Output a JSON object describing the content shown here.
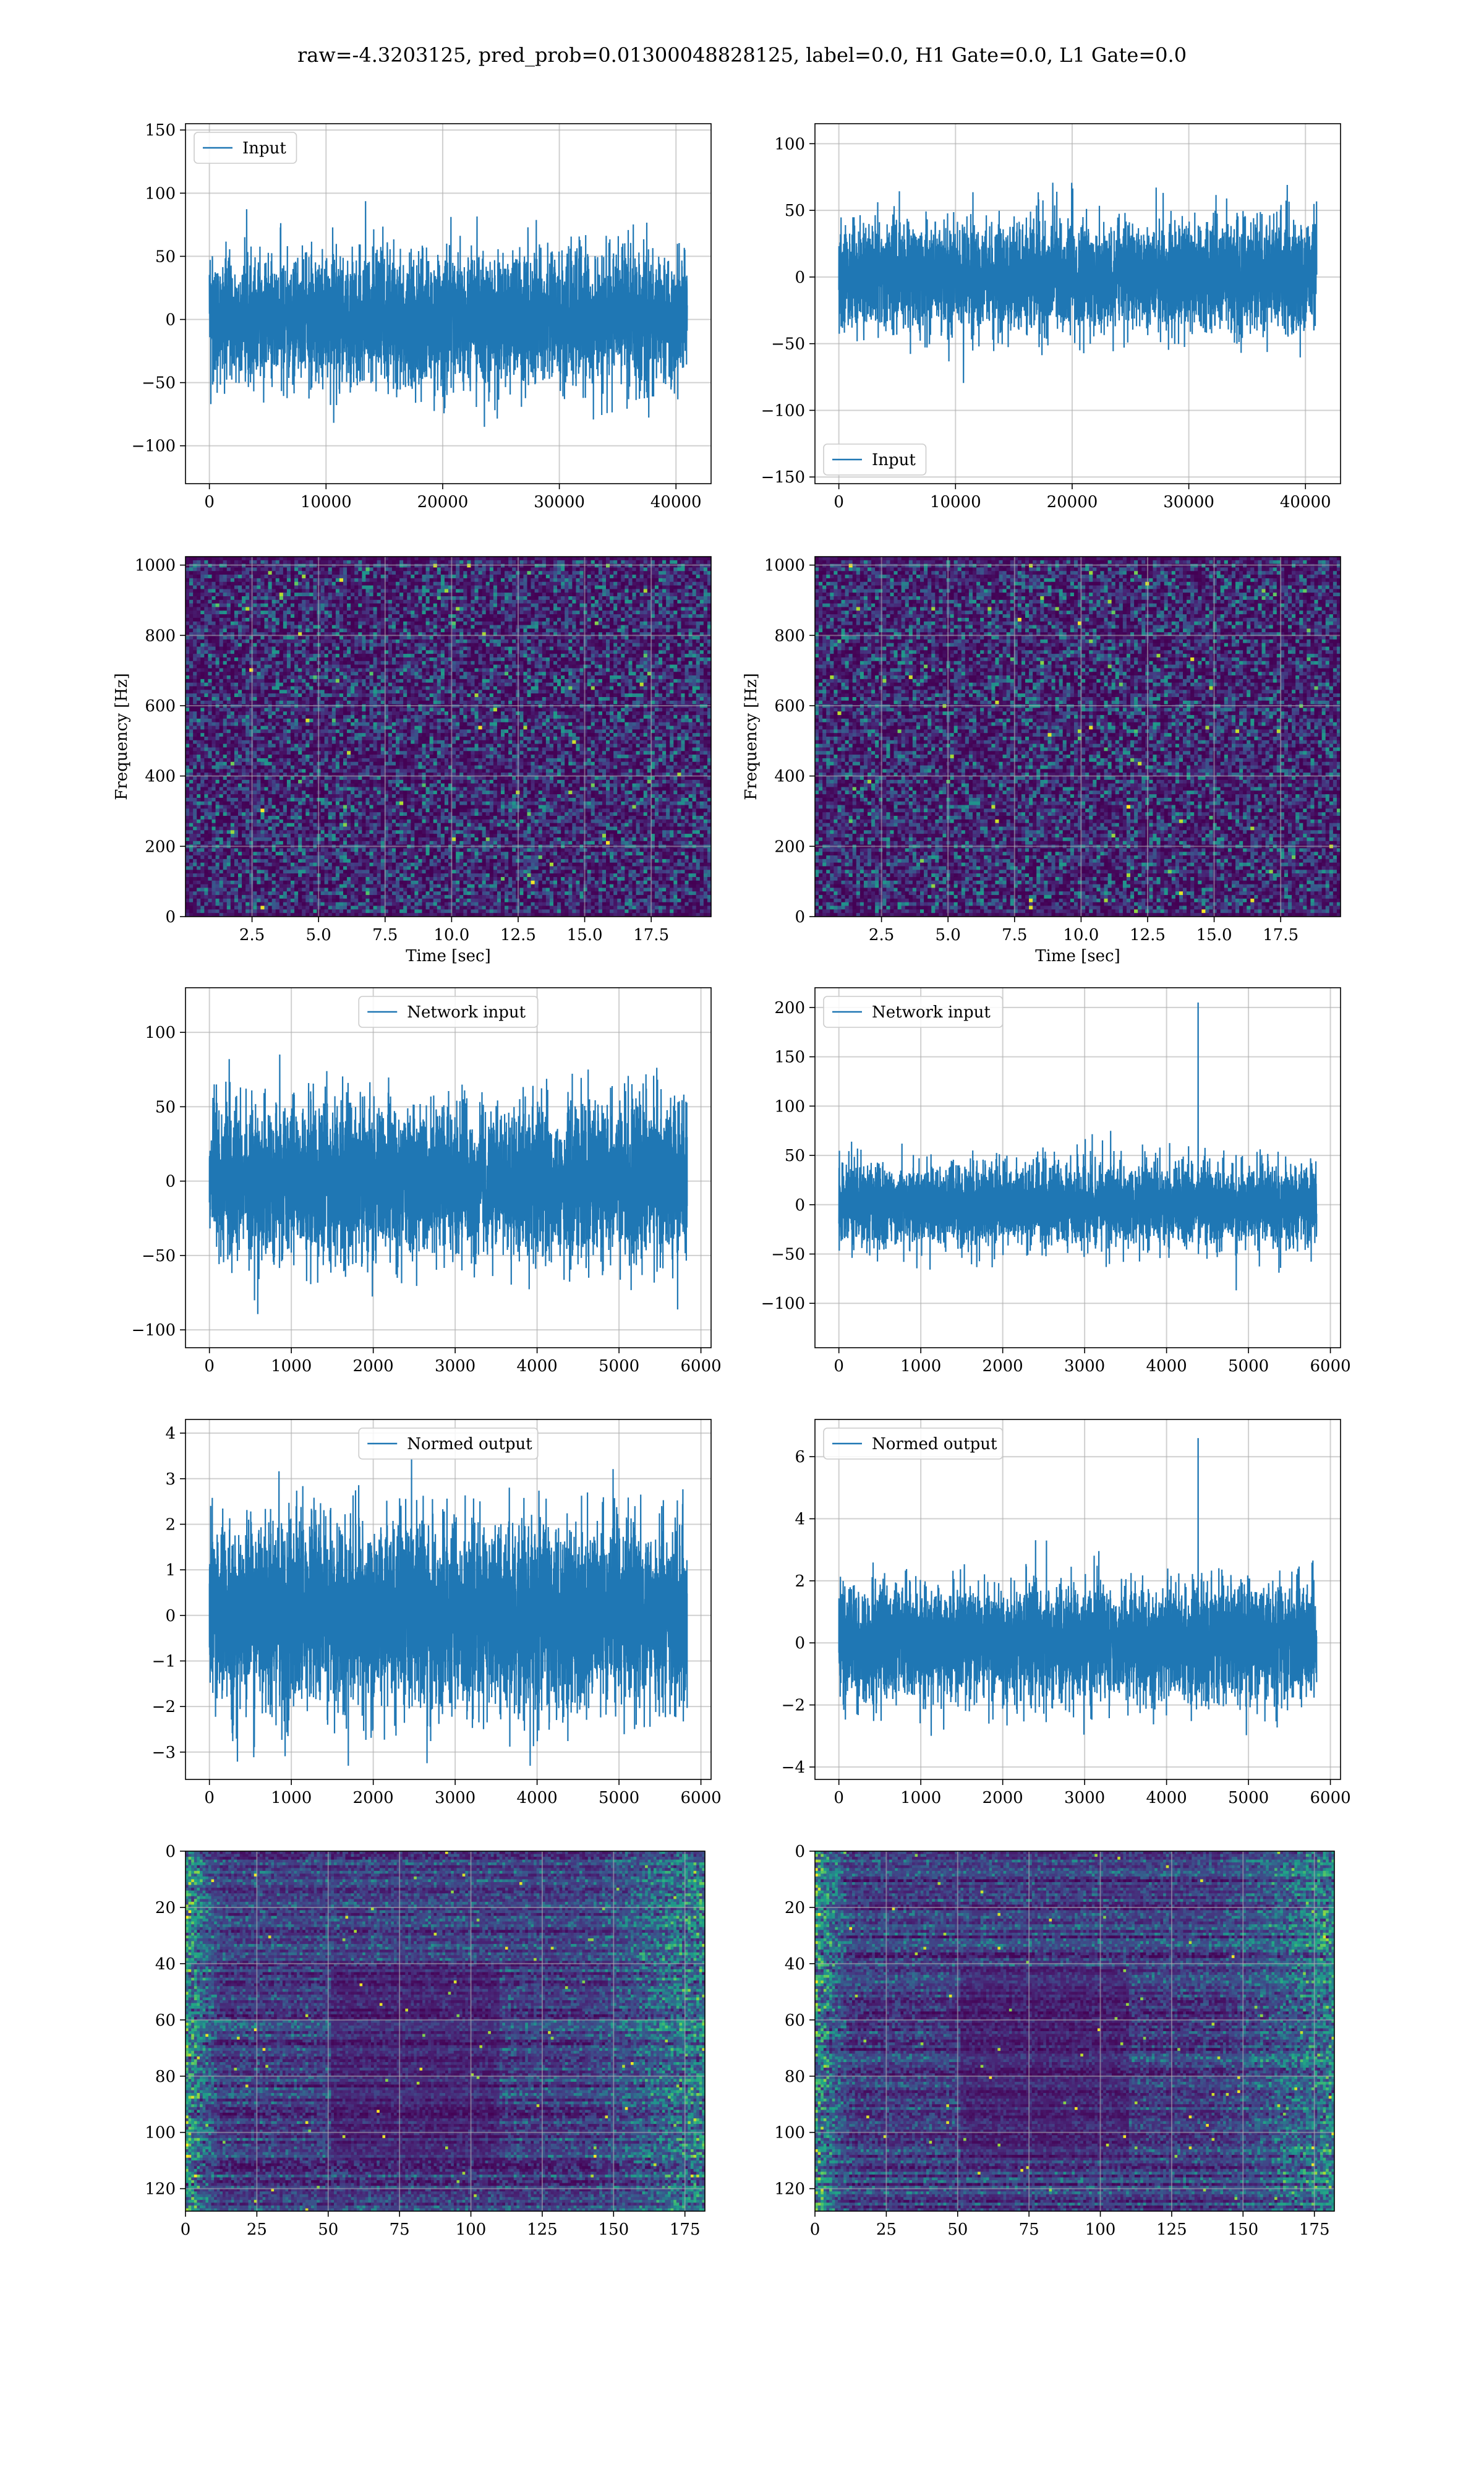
{
  "figure": {
    "suptitle": "raw=-4.3203125, pred_prob=0.01300048828125, label=0.0, H1 Gate=0.0, L1 Gate=0.0"
  },
  "colors": {
    "line": "#1f77b4",
    "grid": "#b0b0b0",
    "viridis_low": "#440154",
    "viridis_mid": "#21918c",
    "viridis_high": "#fde725"
  },
  "chart_data": [
    {
      "id": "input-h1",
      "type": "line",
      "title": "",
      "xlabel": "",
      "ylabel": "",
      "series": [
        {
          "name": "Input",
          "values": []
        }
      ],
      "n_samples": 40960,
      "noise_amplitude": 25,
      "clip": [
        -128,
        140
      ],
      "xlim": [
        -2048,
        43008
      ],
      "ylim": [
        -130,
        155
      ],
      "xticks": [
        0,
        10000,
        20000,
        30000,
        40000
      ],
      "yticks": [
        -100,
        -50,
        0,
        50,
        100,
        150
      ],
      "legend": "upper left",
      "grid": true
    },
    {
      "id": "input-l1",
      "type": "line",
      "title": "",
      "xlabel": "",
      "ylabel": "",
      "series": [
        {
          "name": "Input",
          "values": []
        }
      ],
      "n_samples": 40960,
      "noise_amplitude": 20,
      "clip": [
        -142,
        115
      ],
      "xlim": [
        -2048,
        43008
      ],
      "ylim": [
        -155,
        115
      ],
      "xticks": [
        0,
        10000,
        20000,
        30000,
        40000
      ],
      "yticks": [
        -150,
        -100,
        -50,
        0,
        50,
        100
      ],
      "legend": "lower left",
      "grid": true
    },
    {
      "id": "spectrogram-h1",
      "type": "heatmap",
      "title": "",
      "xlabel": "Time [sec]",
      "ylabel": "Frequency [Hz]",
      "xlim": [
        0,
        19.75
      ],
      "ylim": [
        0,
        1024
      ],
      "xticks": [
        2.5,
        5.0,
        7.5,
        10.0,
        12.5,
        15.0,
        17.5
      ],
      "yticks": [
        0,
        200,
        400,
        600,
        800,
        1000
      ],
      "colormap": "viridis",
      "grid": true
    },
    {
      "id": "spectrogram-l1",
      "type": "heatmap",
      "title": "",
      "xlabel": "Time [sec]",
      "ylabel": "Frequency [Hz]",
      "xlim": [
        0,
        19.75
      ],
      "ylim": [
        0,
        1024
      ],
      "xticks": [
        2.5,
        5.0,
        7.5,
        10.0,
        12.5,
        15.0,
        17.5
      ],
      "yticks": [
        0,
        200,
        400,
        600,
        800,
        1000
      ],
      "colormap": "viridis",
      "grid": true
    },
    {
      "id": "network-input-h1",
      "type": "line",
      "title": "",
      "xlabel": "",
      "ylabel": "",
      "series": [
        {
          "name": "Network input",
          "values": []
        }
      ],
      "n_samples": 5832,
      "noise_amplitude": 25,
      "clip": [
        -100,
        118
      ],
      "xlim": [
        -292,
        6124
      ],
      "ylim": [
        -112,
        130
      ],
      "xticks": [
        0,
        1000,
        2000,
        3000,
        4000,
        5000,
        6000
      ],
      "yticks": [
        -100,
        -50,
        0,
        50,
        100
      ],
      "legend": "upper center",
      "grid": true
    },
    {
      "id": "network-input-l1",
      "type": "line",
      "title": "",
      "xlabel": "",
      "ylabel": "",
      "series": [
        {
          "name": "Network input",
          "values": []
        }
      ],
      "n_samples": 5832,
      "noise_amplitude": 20,
      "clip": [
        -128,
        110
      ],
      "spike": {
        "x": 4385,
        "y": 205
      },
      "xlim": [
        -292,
        6124
      ],
      "ylim": [
        -145,
        220
      ],
      "xticks": [
        0,
        1000,
        2000,
        3000,
        4000,
        5000,
        6000
      ],
      "yticks": [
        -100,
        -50,
        0,
        50,
        100,
        150,
        200
      ],
      "legend": "upper left",
      "grid": true
    },
    {
      "id": "normed-output-h1",
      "type": "line",
      "title": "",
      "xlabel": "",
      "ylabel": "",
      "series": [
        {
          "name": "Normed output",
          "values": []
        }
      ],
      "n_samples": 5832,
      "noise_amplitude": 1,
      "clip": [
        -3.3,
        3.9
      ],
      "xlim": [
        -292,
        6124
      ],
      "ylim": [
        -3.6,
        4.3
      ],
      "xticks": [
        0,
        1000,
        2000,
        3000,
        4000,
        5000,
        6000
      ],
      "yticks": [
        -3,
        -2,
        -1,
        0,
        1,
        2,
        3,
        4
      ],
      "legend": "upper center",
      "grid": true
    },
    {
      "id": "normed-output-l1",
      "type": "line",
      "title": "",
      "xlabel": "",
      "ylabel": "",
      "series": [
        {
          "name": "Normed output",
          "values": []
        }
      ],
      "n_samples": 5832,
      "noise_amplitude": 0.9,
      "clip": [
        -4.1,
        3.5
      ],
      "spike": {
        "x": 4385,
        "y": 6.6
      },
      "xlim": [
        -292,
        6124
      ],
      "ylim": [
        -4.4,
        7.2
      ],
      "xticks": [
        0,
        1000,
        2000,
        3000,
        4000,
        5000,
        6000
      ],
      "yticks": [
        -4,
        -2,
        0,
        2,
        4,
        6
      ],
      "legend": "upper left",
      "grid": true
    },
    {
      "id": "feature-map-h1",
      "type": "heatmap",
      "title": "",
      "xlabel": "",
      "ylabel": "",
      "xlim": [
        0,
        182
      ],
      "ylim": [
        128,
        0
      ],
      "xticks": [
        0,
        25,
        50,
        75,
        100,
        125,
        150,
        175
      ],
      "yticks": [
        0,
        20,
        40,
        60,
        80,
        100,
        120
      ],
      "colormap": "viridis",
      "grid": true
    },
    {
      "id": "feature-map-l1",
      "type": "heatmap",
      "title": "",
      "xlabel": "",
      "ylabel": "",
      "xlim": [
        0,
        182
      ],
      "ylim": [
        128,
        0
      ],
      "xticks": [
        0,
        25,
        50,
        75,
        100,
        125,
        150,
        175
      ],
      "yticks": [
        0,
        20,
        40,
        60,
        80,
        100,
        120
      ],
      "colormap": "viridis",
      "grid": true
    }
  ]
}
